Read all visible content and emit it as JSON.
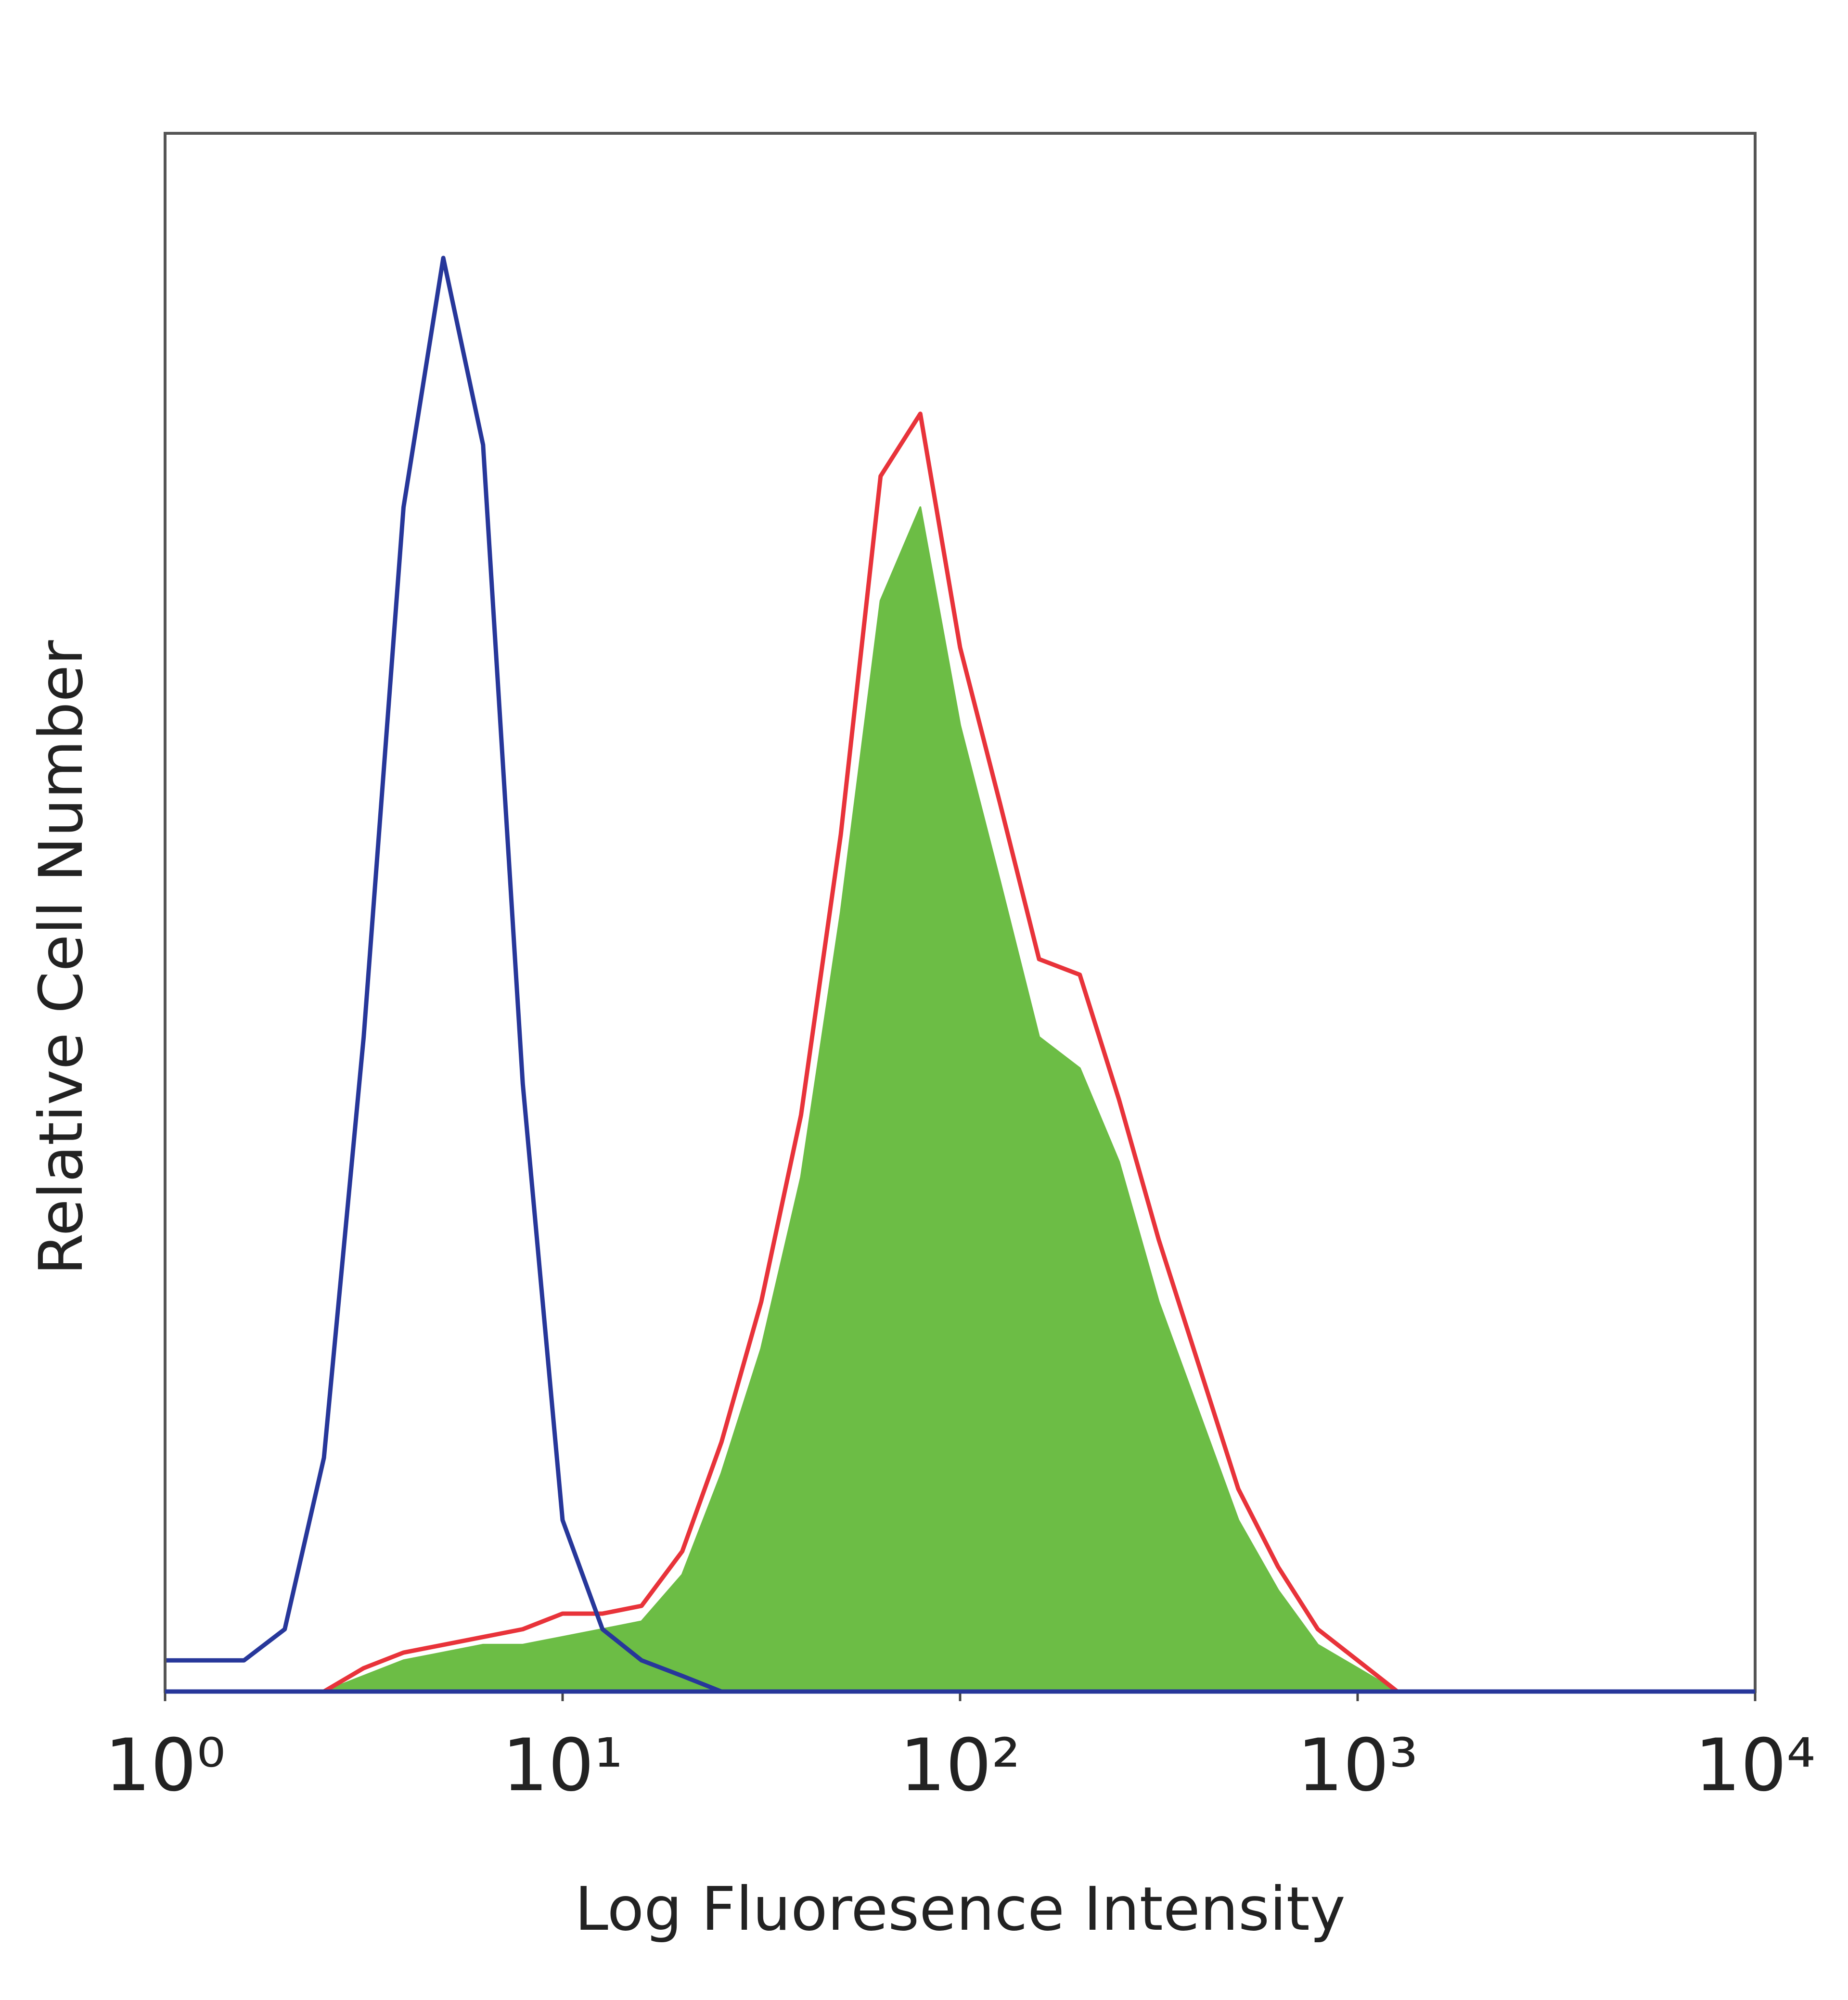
{
  "chart_data": {
    "type": "line",
    "xlabel": "Log Fluoresence Intensity",
    "ylabel": "Relative Cell Number",
    "xscale": "log",
    "xlim": [
      1,
      10000
    ],
    "xticks": [
      {
        "value": 1,
        "label": "10⁰"
      },
      {
        "value": 10,
        "label": "10¹"
      },
      {
        "value": 100,
        "label": "10²"
      },
      {
        "value": 1000,
        "label": "10³"
      },
      {
        "value": 10000,
        "label": "10⁴"
      }
    ],
    "ylim": [
      0,
      100
    ],
    "x": [
      1,
      1.26,
      1.58,
      2,
      2.51,
      3.16,
      3.98,
      5.01,
      6.31,
      7.94,
      10,
      12.6,
      15.8,
      20,
      25.1,
      31.6,
      39.8,
      50.1,
      63.1,
      79.4,
      100,
      126,
      158,
      200,
      251,
      316,
      398,
      501,
      631,
      794,
      1000,
      1259,
      1585,
      1995,
      2512,
      3162,
      3981,
      5012,
      6310,
      7943,
      10000
    ],
    "series": [
      {
        "color": "#6cbd45",
        "style": "area",
        "values": [
          0,
          0,
          0,
          0,
          0,
          1,
          2,
          2.5,
          3,
          3,
          3.5,
          4,
          4.5,
          7.5,
          14,
          22,
          33,
          50,
          70,
          76,
          62,
          52,
          42,
          40,
          34,
          25,
          18,
          11,
          6.5,
          3,
          1.5,
          0,
          0,
          0,
          0,
          0,
          0,
          0,
          0,
          0,
          0
        ]
      },
      {
        "color": "#e8333a",
        "style": "line",
        "values": [
          0,
          0,
          0,
          0,
          0,
          1.5,
          2.5,
          3,
          3.5,
          4,
          5,
          5,
          5.5,
          9,
          16,
          25,
          37,
          55,
          78,
          82,
          67,
          57,
          47,
          46,
          38,
          29,
          21,
          13,
          8,
          4,
          2,
          0,
          0,
          0,
          0,
          0,
          0,
          0,
          0,
          0,
          0
        ]
      },
      {
        "color": "#27379a",
        "style": "line",
        "values": [
          2,
          2,
          2,
          4,
          15,
          42,
          76,
          92,
          80,
          39,
          11,
          4,
          2,
          1,
          0,
          0,
          0,
          0,
          0,
          0,
          0,
          0,
          0,
          0,
          0,
          0,
          0,
          0,
          0,
          0,
          0,
          0,
          0,
          0,
          0,
          0,
          0,
          0,
          0,
          0,
          0
        ]
      }
    ]
  }
}
